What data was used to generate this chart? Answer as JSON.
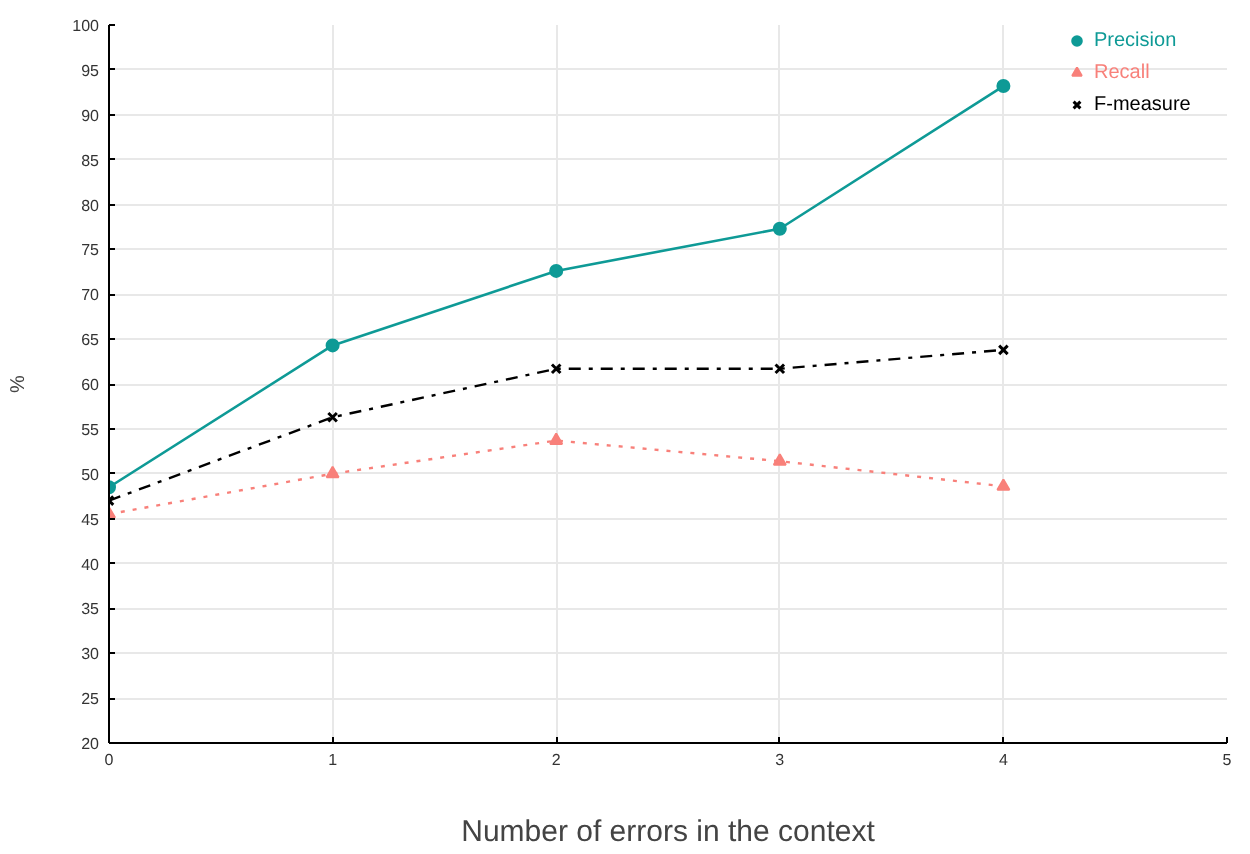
{
  "chart_data": {
    "type": "line",
    "xlabel": "Number of errors in the context",
    "ylabel": "%",
    "x": [
      0,
      1,
      2,
      3,
      4
    ],
    "series": [
      {
        "name": "Precision",
        "color": "#0e9a96",
        "marker": "circle",
        "line_style": "solid",
        "values": [
          48.5,
          64.3,
          72.6,
          77.3,
          93.2
        ]
      },
      {
        "name": "Recall",
        "color": "#f8807a",
        "marker": "triangle",
        "line_style": "dotted",
        "values": [
          45.5,
          50.0,
          53.7,
          51.4,
          48.6
        ]
      },
      {
        "name": "F-measure",
        "color": "#000000",
        "marker": "cross",
        "line_style": "dashdot",
        "values": [
          47.0,
          56.3,
          61.7,
          61.7,
          63.8
        ]
      }
    ],
    "xlim": [
      0,
      5
    ],
    "xticks": [
      0,
      1,
      2,
      3,
      4,
      5
    ],
    "ylim": [
      20,
      100
    ],
    "yticks": [
      20,
      25,
      30,
      35,
      40,
      45,
      50,
      55,
      60,
      65,
      70,
      75,
      80,
      85,
      90,
      95,
      100
    ],
    "grid": true,
    "legend": "top right"
  }
}
